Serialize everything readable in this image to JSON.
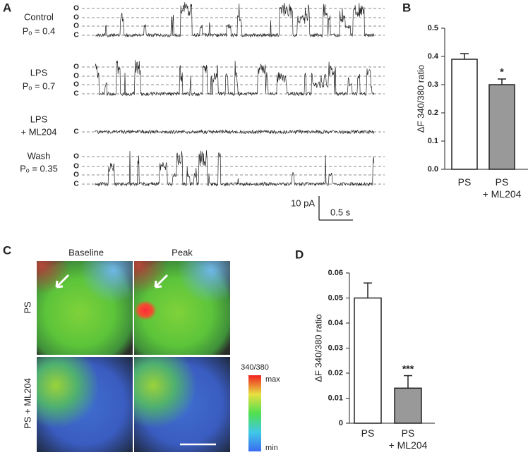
{
  "panel_labels": [
    "A",
    "B",
    "C",
    "D"
  ],
  "traces": {
    "rows": [
      {
        "label": [
          "Control",
          "Pₒ = 0.4"
        ],
        "states": [
          "O",
          "O",
          "O",
          "C"
        ]
      },
      {
        "label": [
          "LPS",
          "Pₒ = 0.7"
        ],
        "states": [
          "O",
          "O",
          "O",
          "C"
        ]
      },
      {
        "label": [
          "LPS",
          "+ ML204"
        ],
        "states": [
          "C"
        ]
      },
      {
        "label": [
          "Wash",
          "Pₒ = 0.35"
        ],
        "states": [
          "O",
          "O",
          "O",
          "C"
        ]
      }
    ],
    "scale_bar": {
      "y": "10 pA",
      "x": "0.5 s"
    }
  },
  "imaging": {
    "columns": [
      "Baseline",
      "Peak"
    ],
    "rows": [
      "PS",
      "PS + ML204"
    ],
    "colorbar": {
      "title": "340/380",
      "max": "max",
      "min": "min"
    }
  },
  "chart_data": [
    {
      "type": "bar",
      "ylabel": "ΔF 340/380 ratio",
      "categories": [
        "PS",
        "PS\n+ ML204"
      ],
      "values": [
        0.39,
        0.3
      ],
      "errors": [
        0.02,
        0.02
      ],
      "significance": [
        null,
        "*"
      ],
      "colors": [
        "#ffffff",
        "#999999"
      ],
      "ylim": [
        0,
        0.5
      ],
      "yticks": [
        {
          "value": 0,
          "label": "0.0"
        },
        0.1,
        0.2,
        0.3,
        0.4,
        0.5
      ],
      "grid": false
    },
    {
      "type": "bar",
      "ylabel": "ΔF 340/380 ratio",
      "categories": [
        "PS",
        "PS\n+ ML204"
      ],
      "values": [
        0.05,
        0.014
      ],
      "errors": [
        0.006,
        0.005
      ],
      "significance": [
        null,
        "***"
      ],
      "colors": [
        "#ffffff",
        "#999999"
      ],
      "ylim": [
        0,
        0.06
      ],
      "yticks": [
        0,
        0.01,
        0.02,
        0.03,
        0.04,
        0.05,
        0.06
      ],
      "grid": false
    }
  ]
}
